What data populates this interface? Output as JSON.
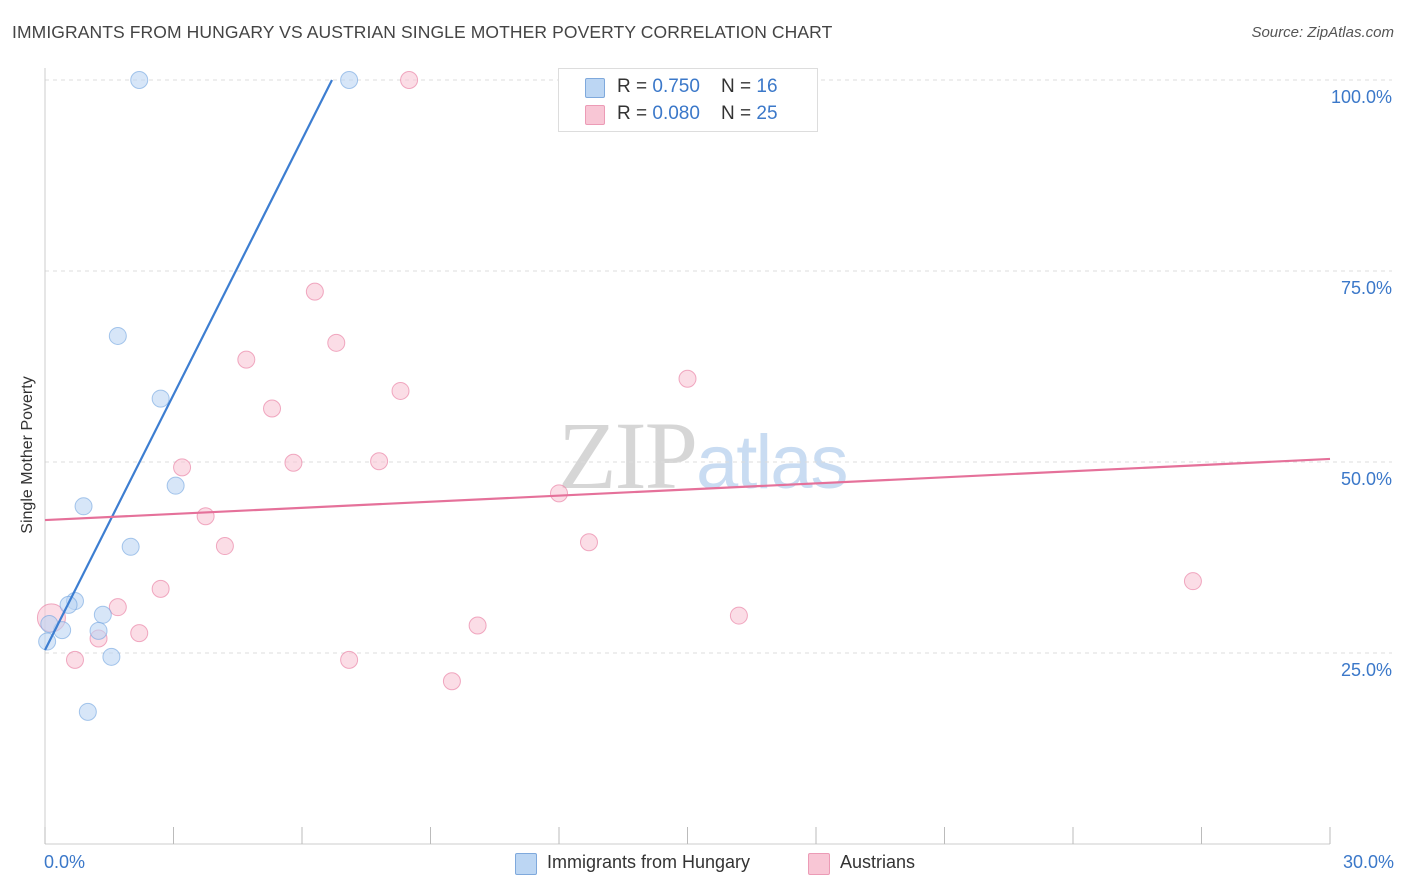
{
  "header": {
    "title": "IMMIGRANTS FROM HUNGARY VS AUSTRIAN SINGLE MOTHER POVERTY CORRELATION CHART",
    "source": "Source: ZipAtlas.com"
  },
  "watermark": {
    "zip": "ZIP",
    "atlas": "atlas"
  },
  "legend": {
    "rows": [
      {
        "r_label": "R = ",
        "r_value": "0.750",
        "n_label": "N = ",
        "n_value": "16",
        "color": "#a9c9f0"
      },
      {
        "r_label": "R = ",
        "r_value": "0.080",
        "n_label": "N = ",
        "n_value": "25",
        "color": "#f6b8cb"
      }
    ]
  },
  "bottom_legend": [
    {
      "label": "Immigrants from Hungary",
      "color": "#a9c9f0"
    },
    {
      "label": "Austrians",
      "color": "#f6b8cb"
    }
  ],
  "axis_labels": {
    "x_min": "0.0%",
    "x_max": "30.0%",
    "y_ticks": [
      "100.0%",
      "75.0%",
      "50.0%",
      "25.0%"
    ]
  },
  "chart_data": {
    "type": "scatter",
    "title": "IMMIGRANTS FROM HUNGARY VS AUSTRIAN SINGLE MOTHER POVERTY CORRELATION CHART",
    "xlabel": "",
    "ylabel": "Single Mother Poverty",
    "xlim": [
      0,
      30
    ],
    "ylim": [
      0,
      100
    ],
    "y_ticks": [
      25,
      50,
      75,
      100
    ],
    "grid": true,
    "legend_position": "top-center",
    "series": [
      {
        "name": "Immigrants from Hungary",
        "color": "#6fa3e0",
        "fill": "#bcd6f3",
        "r": 0.75,
        "n": 16,
        "points": [
          [
            2.2,
            100.0
          ],
          [
            7.1,
            100.0
          ],
          [
            1.7,
            66.5
          ],
          [
            2.7,
            58.3
          ],
          [
            3.05,
            46.9
          ],
          [
            0.9,
            44.2
          ],
          [
            2.0,
            38.9
          ],
          [
            0.7,
            31.8
          ],
          [
            0.55,
            31.3
          ],
          [
            1.35,
            30.0
          ],
          [
            0.4,
            28.0
          ],
          [
            1.25,
            27.9
          ],
          [
            0.1,
            28.8
          ],
          [
            0.05,
            26.5
          ],
          [
            1.55,
            24.5
          ],
          [
            1.0,
            17.3
          ]
        ],
        "trendline": {
          "x": [
            0.0,
            6.7
          ],
          "y": [
            25.4,
            100.0
          ]
        }
      },
      {
        "name": "Austrians",
        "color": "#e8779c",
        "fill": "#f8c6d5",
        "r": 0.08,
        "n": 25,
        "points": [
          [
            8.5,
            100.0
          ],
          [
            6.3,
            72.3
          ],
          [
            6.8,
            65.6
          ],
          [
            4.7,
            63.4
          ],
          [
            15.0,
            60.9
          ],
          [
            8.3,
            59.3
          ],
          [
            5.3,
            57.0
          ],
          [
            3.2,
            49.3
          ],
          [
            5.8,
            49.9
          ],
          [
            7.8,
            50.1
          ],
          [
            12.0,
            45.9
          ],
          [
            3.75,
            42.9
          ],
          [
            4.2,
            39.0
          ],
          [
            12.7,
            39.5
          ],
          [
            26.8,
            34.4
          ],
          [
            2.7,
            33.4
          ],
          [
            1.7,
            31.0
          ],
          [
            16.2,
            29.9
          ],
          [
            0.15,
            29.6
          ],
          [
            10.1,
            28.6
          ],
          [
            2.2,
            27.6
          ],
          [
            1.25,
            26.9
          ],
          [
            0.7,
            24.1
          ],
          [
            7.1,
            24.1
          ],
          [
            9.5,
            21.3
          ]
        ],
        "trendline": {
          "x": [
            0.0,
            30.0
          ],
          "y": [
            42.4,
            50.4
          ]
        }
      }
    ]
  }
}
